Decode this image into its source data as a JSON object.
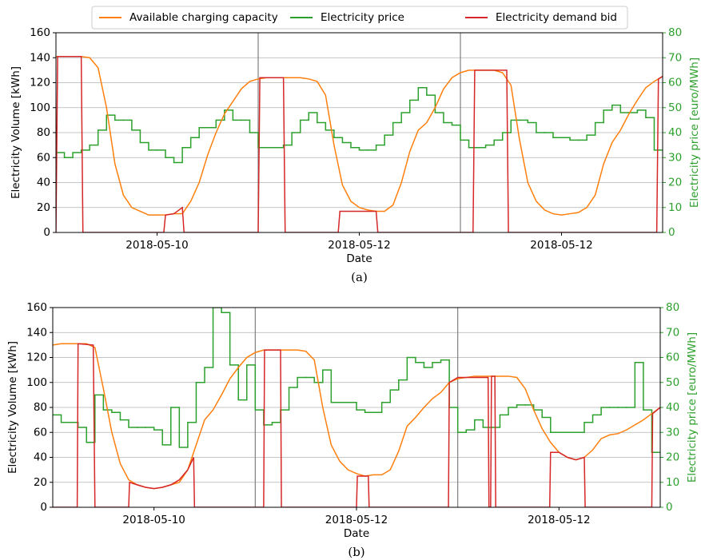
{
  "chart_data": [
    {
      "type": "line",
      "caption": "(a)",
      "xlabel": "Date",
      "ylabel": "Electricity Volume [kWh]",
      "y2label": "Electricity price [euro/MWh]",
      "xlim": [
        0,
        72
      ],
      "xticks": [
        {
          "value": 12,
          "label": "2018-05-10"
        },
        {
          "value": 36,
          "label": "2018-05-12"
        },
        {
          "value": 60,
          "label": "2018-05-12"
        }
      ],
      "vlines": [
        24,
        48
      ],
      "ylim": [
        0,
        160
      ],
      "yticks": [
        0,
        20,
        40,
        60,
        80,
        100,
        120,
        140,
        160
      ],
      "y2lim": [
        0,
        80
      ],
      "y2ticks": [
        0,
        10,
        20,
        30,
        40,
        50,
        60,
        70,
        80
      ],
      "grid": true,
      "series": [
        {
          "name": "Available charging capacity",
          "color": "#ff7f0e",
          "style": "line",
          "x": [
            0,
            1,
            2,
            3,
            4,
            5,
            6,
            7,
            8,
            9,
            10,
            11,
            12,
            13,
            14,
            15,
            16,
            17,
            18,
            19,
            20,
            21,
            22,
            23,
            24,
            25,
            26,
            27,
            28,
            29,
            30,
            31,
            32,
            33,
            34,
            35,
            36,
            37,
            38,
            39,
            40,
            41,
            42,
            43,
            44,
            45,
            46,
            47,
            48,
            49,
            50,
            51,
            52,
            53,
            54,
            55,
            56,
            57,
            58,
            59,
            60,
            61,
            62,
            63,
            64,
            65,
            66,
            67,
            68,
            69,
            70,
            71,
            72
          ],
          "values": [
            141,
            141,
            141,
            141,
            140,
            132,
            100,
            55,
            30,
            20,
            17,
            14,
            14,
            14,
            15,
            15,
            25,
            40,
            62,
            80,
            95,
            105,
            115,
            121,
            123,
            124,
            124,
            124,
            124,
            124,
            123,
            121,
            110,
            70,
            38,
            25,
            20,
            18,
            17,
            17,
            22,
            40,
            65,
            82,
            88,
            100,
            115,
            124,
            128,
            130,
            130,
            130,
            130,
            128,
            118,
            75,
            40,
            25,
            18,
            15,
            14,
            15,
            16,
            20,
            30,
            55,
            72,
            82,
            95,
            106,
            116,
            121,
            125
          ]
        },
        {
          "name": "Electricity price",
          "color": "#2ca02c",
          "style": "steps",
          "axis": "y2",
          "x": [
            0,
            1,
            2,
            3,
            4,
            5,
            6,
            7,
            8,
            9,
            10,
            11,
            12,
            13,
            14,
            15,
            16,
            17,
            18,
            19,
            20,
            21,
            22,
            23,
            24,
            25,
            26,
            27,
            28,
            29,
            30,
            31,
            32,
            33,
            34,
            35,
            36,
            37,
            38,
            39,
            40,
            41,
            42,
            43,
            44,
            45,
            46,
            47,
            48,
            49,
            50,
            51,
            52,
            53,
            54,
            55,
            56,
            57,
            58,
            59,
            60,
            61,
            62,
            63,
            64,
            65,
            66,
            67,
            68,
            69,
            70,
            71
          ],
          "values": [
            32,
            30,
            32,
            33,
            35,
            41,
            47,
            45,
            45,
            41,
            36,
            33,
            33,
            30,
            28,
            34,
            38,
            42,
            42,
            45,
            49,
            45,
            45,
            40,
            34,
            34,
            34,
            35,
            40,
            45,
            48,
            44,
            41,
            38,
            36,
            34,
            33,
            33,
            35,
            39,
            44,
            48,
            53,
            58,
            55,
            48,
            44,
            43,
            37,
            34,
            34,
            35,
            37,
            40,
            45,
            45,
            44,
            40,
            40,
            38,
            38,
            37,
            37,
            39,
            44,
            49,
            51,
            48,
            48,
            49,
            46,
            33
          ]
        },
        {
          "name": "Electricity demand bid",
          "color": "#d62728",
          "style": "line",
          "x": [
            0,
            0.2,
            3,
            3.2,
            12.8,
            13,
            14,
            15,
            15.2,
            24,
            24.2,
            27,
            27.2,
            33.5,
            33.7,
            35,
            38,
            38.2,
            49.5,
            49.7,
            53.5,
            53.7,
            71.3,
            71.5,
            72
          ],
          "values": [
            0,
            141,
            141,
            0,
            0,
            14,
            15,
            20,
            0,
            0,
            124,
            124,
            0,
            0,
            17,
            17,
            17,
            0,
            0,
            130,
            130,
            0,
            0,
            123,
            125
          ]
        }
      ]
    },
    {
      "type": "line",
      "caption": "(b)",
      "xlabel": "Date",
      "ylabel": "Electricity Volume [kWh]",
      "y2label": "Electricity price [euro/MWh]",
      "xlim": [
        0,
        72
      ],
      "xticks": [
        {
          "value": 12,
          "label": "2018-05-10"
        },
        {
          "value": 36,
          "label": "2018-05-12"
        },
        {
          "value": 60,
          "label": "2018-05-12"
        }
      ],
      "vlines": [
        24,
        48
      ],
      "ylim": [
        0,
        160
      ],
      "yticks": [
        0,
        20,
        40,
        60,
        80,
        100,
        120,
        140,
        160
      ],
      "y2lim": [
        0,
        80
      ],
      "y2ticks": [
        0,
        10,
        20,
        30,
        40,
        50,
        60,
        70,
        80
      ],
      "grid": true,
      "series": [
        {
          "color": "#ff7f0e",
          "style": "line",
          "x": [
            0,
            1,
            2,
            3,
            4,
            5,
            6,
            7,
            8,
            9,
            10,
            11,
            12,
            13,
            14,
            15,
            16,
            17,
            18,
            19,
            20,
            21,
            22,
            23,
            24,
            25,
            26,
            27,
            28,
            29,
            30,
            31,
            32,
            33,
            34,
            35,
            36,
            37,
            38,
            39,
            40,
            41,
            42,
            43,
            44,
            45,
            46,
            47,
            48,
            49,
            50,
            51,
            52,
            53,
            54,
            55,
            56,
            57,
            58,
            59,
            60,
            61,
            62,
            63,
            64,
            65,
            66,
            67,
            68,
            69,
            70,
            71,
            72
          ],
          "values": [
            130,
            131,
            131,
            131,
            131,
            128,
            95,
            60,
            35,
            22,
            18,
            16,
            15,
            16,
            18,
            20,
            30,
            50,
            70,
            78,
            90,
            103,
            112,
            120,
            124,
            126,
            126,
            126,
            126,
            126,
            125,
            118,
            80,
            50,
            37,
            30,
            27,
            25,
            26,
            26,
            30,
            45,
            65,
            72,
            80,
            87,
            92,
            100,
            103,
            104,
            105,
            105,
            105,
            105,
            105,
            104,
            95,
            78,
            63,
            52,
            44,
            40,
            38,
            40,
            46,
            55,
            58,
            59,
            62,
            66,
            70,
            75,
            80
          ]
        },
        {
          "color": "#2ca02c",
          "style": "steps",
          "axis": "y2",
          "x": [
            0,
            1,
            2,
            3,
            4,
            5,
            6,
            7,
            8,
            9,
            10,
            11,
            12,
            13,
            14,
            15,
            16,
            17,
            18,
            19,
            20,
            21,
            22,
            23,
            24,
            25,
            26,
            27,
            28,
            29,
            30,
            31,
            32,
            33,
            34,
            35,
            36,
            37,
            38,
            39,
            40,
            41,
            42,
            43,
            44,
            45,
            46,
            47,
            48,
            49,
            50,
            51,
            52,
            53,
            54,
            55,
            56,
            57,
            58,
            59,
            60,
            61,
            62,
            63,
            64,
            65,
            66,
            67,
            68,
            69,
            70,
            71
          ],
          "values": [
            37,
            34,
            34,
            32,
            26,
            45,
            39,
            38,
            35,
            32,
            32,
            32,
            31,
            25,
            40,
            24,
            34,
            50,
            56,
            80,
            78,
            57,
            43,
            57,
            39,
            33,
            34,
            39,
            48,
            52,
            52,
            50,
            55,
            42,
            42,
            42,
            39,
            38,
            38,
            42,
            47,
            51,
            60,
            58,
            56,
            58,
            59,
            40,
            30,
            31,
            35,
            32,
            32,
            37,
            40,
            41,
            41,
            39,
            36,
            30,
            30,
            30,
            30,
            34,
            37,
            40,
            40,
            40,
            40,
            58,
            39,
            22
          ]
        },
        {
          "color": "#d62728",
          "style": "line",
          "x": [
            0,
            2.9,
            3,
            4.8,
            5,
            9,
            9.1,
            10,
            11,
            12,
            13,
            14,
            15,
            16,
            16.7,
            16.8,
            25,
            25.1,
            27,
            27.1,
            36,
            36.1,
            37.4,
            37.5,
            46.9,
            47,
            48,
            51.6,
            51.7,
            51.9,
            52,
            52.4,
            52.5,
            58.9,
            59,
            60,
            61,
            62,
            63,
            63.1,
            71,
            71.1,
            72
          ],
          "values": [
            0,
            0,
            131,
            130,
            0,
            0,
            20,
            18,
            16,
            15,
            16,
            18,
            22,
            30,
            40,
            0,
            0,
            126,
            126,
            0,
            0,
            25,
            25,
            0,
            0,
            100,
            104,
            104,
            0,
            0,
            105,
            105,
            0,
            0,
            44,
            44,
            40,
            38,
            40,
            0,
            0,
            75,
            80
          ]
        }
      ]
    }
  ]
}
